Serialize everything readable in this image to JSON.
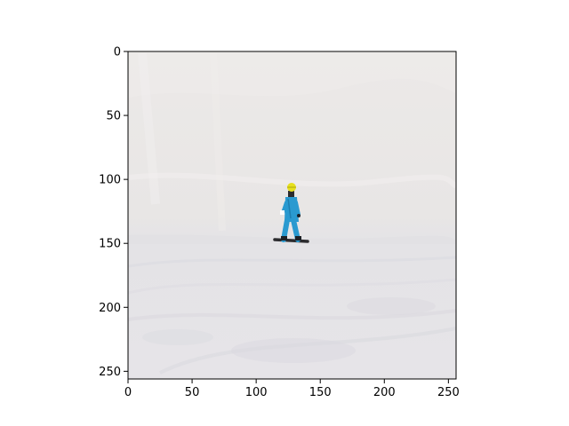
{
  "figure": {
    "background": "#ffffff",
    "image_extent": {
      "x_max": 256,
      "y_max": 256
    },
    "x_ticks": [
      "0",
      "50",
      "100",
      "150",
      "200",
      "250"
    ],
    "y_ticks": [
      "0",
      "50",
      "100",
      "150",
      "200",
      "250"
    ],
    "x_tick_values": [
      0,
      50,
      100,
      150,
      200,
      250
    ],
    "y_tick_values": [
      0,
      50,
      100,
      150,
      200,
      250
    ]
  },
  "photo": {
    "subject": "snowboarder on snowy slope",
    "colors": {
      "snow_light": "#ebe8e7",
      "snow_mid": "#e3e1e3",
      "snow_shadow": "#d9d8de",
      "jacket": "#2a9ad0",
      "helmet": "#e6e01e",
      "board": "#2b2b2e"
    }
  }
}
